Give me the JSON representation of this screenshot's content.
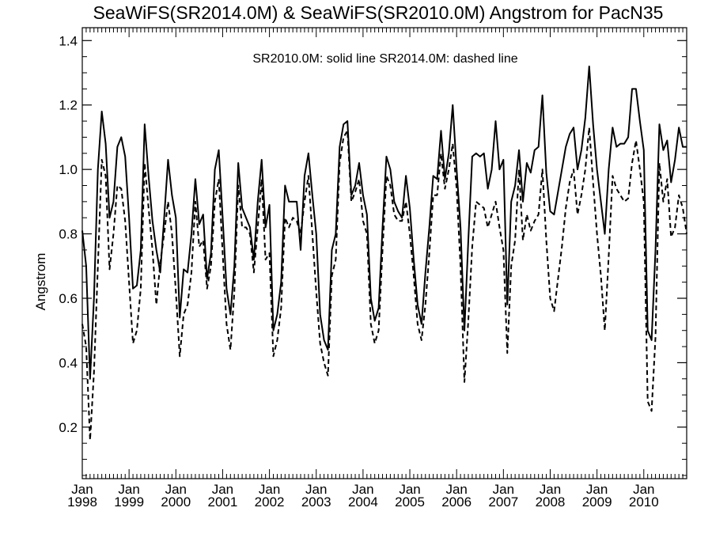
{
  "chart_data": {
    "type": "line",
    "title": "SeaWiFS(SR2014.0M) & SeaWiFS(SR2010.0M)  Angstrom for PacN35",
    "xlabel": "",
    "ylabel": "Angstrom",
    "annotation": "SR2010.0M: solid line   SR2014.0M: dashed line",
    "x_start": "1998-01",
    "x_range_months": [
      0,
      155
    ],
    "ylim": [
      0.04,
      1.44
    ],
    "y_ticks": [
      0.2,
      0.4,
      0.6,
      0.8,
      1.0,
      1.2,
      1.4
    ],
    "y_tick_labels": [
      "0.2",
      "0.4",
      "0.6",
      "0.8",
      "1.0",
      "1.2",
      "1.4"
    ],
    "x_ticks": [
      {
        "month": "Jan",
        "year": "1998"
      },
      {
        "month": "Jan",
        "year": "1999"
      },
      {
        "month": "Jan",
        "year": "2000"
      },
      {
        "month": "Jan",
        "year": "2001"
      },
      {
        "month": "Jan",
        "year": "2002"
      },
      {
        "month": "Jan",
        "year": "2003"
      },
      {
        "month": "Jan",
        "year": "2004"
      },
      {
        "month": "Jan",
        "year": "2005"
      },
      {
        "month": "Jan",
        "year": "2006"
      },
      {
        "month": "Jan",
        "year": "2007"
      },
      {
        "month": "Jan",
        "year": "2008"
      },
      {
        "month": "Jan",
        "year": "2009"
      },
      {
        "month": "Jan",
        "year": "2010"
      }
    ],
    "grid": false,
    "series": [
      {
        "name": "SR2010.0M",
        "style": "solid",
        "values": [
          0.81,
          0.7,
          0.35,
          0.6,
          1.0,
          1.18,
          1.08,
          0.85,
          0.9,
          1.07,
          1.1,
          1.04,
          0.85,
          0.63,
          0.64,
          0.75,
          1.14,
          0.98,
          0.84,
          0.75,
          0.68,
          0.85,
          1.03,
          0.92,
          0.85,
          0.54,
          0.69,
          0.68,
          0.8,
          0.97,
          0.83,
          0.86,
          0.66,
          0.74,
          1.0,
          1.06,
          0.85,
          0.63,
          0.55,
          0.7,
          1.02,
          0.88,
          0.85,
          0.82,
          0.72,
          0.9,
          1.03,
          0.82,
          0.89,
          0.5,
          0.55,
          0.65,
          0.95,
          0.9,
          0.9,
          0.9,
          0.75,
          0.98,
          1.05,
          0.92,
          0.8,
          0.55,
          0.47,
          0.44,
          0.75,
          0.8,
          1.07,
          1.14,
          1.15,
          0.92,
          0.95,
          1.02,
          0.92,
          0.86,
          0.6,
          0.53,
          0.57,
          0.82,
          1.04,
          1.0,
          0.9,
          0.87,
          0.85,
          0.98,
          0.88,
          0.72,
          0.58,
          0.52,
          0.68,
          0.82,
          0.98,
          0.97,
          1.12,
          0.97,
          1.05,
          1.2,
          1.0,
          0.82,
          0.5,
          0.78,
          1.04,
          1.05,
          1.04,
          1.05,
          0.94,
          1.0,
          1.15,
          1.0,
          1.03,
          0.58,
          0.9,
          0.95,
          1.06,
          0.9,
          1.02,
          0.99,
          1.06,
          1.07,
          1.23,
          0.99,
          0.87,
          0.86,
          0.93,
          1.0,
          1.07,
          1.11,
          1.13,
          1.0,
          1.06,
          1.16,
          1.32,
          1.14,
          1.0,
          0.9,
          0.8,
          1.0,
          1.13,
          1.07,
          1.08,
          1.08,
          1.1,
          1.25,
          1.25,
          1.15,
          1.06,
          0.5,
          0.47,
          0.75,
          1.14,
          1.06,
          1.09,
          0.96,
          1.03,
          1.13,
          1.07,
          1.07
        ]
      },
      {
        "name": "SR2014.0M",
        "style": "dashed",
        "values": [
          0.52,
          0.45,
          0.16,
          0.37,
          0.7,
          1.03,
          0.98,
          0.69,
          0.8,
          0.95,
          0.94,
          0.84,
          0.65,
          0.46,
          0.5,
          0.63,
          1.02,
          0.88,
          0.75,
          0.58,
          0.71,
          0.8,
          0.9,
          0.8,
          0.62,
          0.42,
          0.55,
          0.58,
          0.68,
          0.9,
          0.76,
          0.78,
          0.63,
          0.7,
          0.9,
          0.97,
          0.74,
          0.52,
          0.44,
          0.62,
          0.95,
          0.82,
          0.82,
          0.8,
          0.68,
          0.82,
          0.97,
          0.72,
          0.74,
          0.42,
          0.47,
          0.57,
          0.85,
          0.82,
          0.85,
          0.84,
          0.8,
          0.9,
          0.98,
          0.8,
          0.62,
          0.46,
          0.4,
          0.36,
          0.67,
          0.72,
          1.02,
          1.1,
          1.12,
          0.9,
          0.93,
          0.97,
          0.84,
          0.8,
          0.52,
          0.46,
          0.5,
          0.75,
          0.98,
          0.95,
          0.86,
          0.84,
          0.84,
          0.9,
          0.8,
          0.67,
          0.52,
          0.47,
          0.58,
          0.74,
          0.92,
          0.92,
          1.05,
          0.94,
          1.0,
          1.08,
          0.94,
          0.7,
          0.34,
          0.53,
          0.76,
          0.9,
          0.89,
          0.88,
          0.82,
          0.86,
          0.9,
          0.82,
          0.75,
          0.43,
          0.7,
          0.78,
          1.0,
          0.78,
          0.86,
          0.81,
          0.84,
          0.86,
          1.0,
          0.78,
          0.6,
          0.56,
          0.66,
          0.76,
          0.88,
          0.96,
          1.0,
          0.86,
          0.92,
          1.0,
          1.13,
          0.96,
          0.8,
          0.67,
          0.5,
          0.73,
          0.98,
          0.94,
          0.92,
          0.9,
          0.91,
          1.02,
          1.09,
          1.0,
          0.9,
          0.28,
          0.25,
          0.48,
          1.02,
          0.9,
          0.97,
          0.79,
          0.82,
          0.92,
          0.88,
          0.8
        ]
      }
    ]
  }
}
